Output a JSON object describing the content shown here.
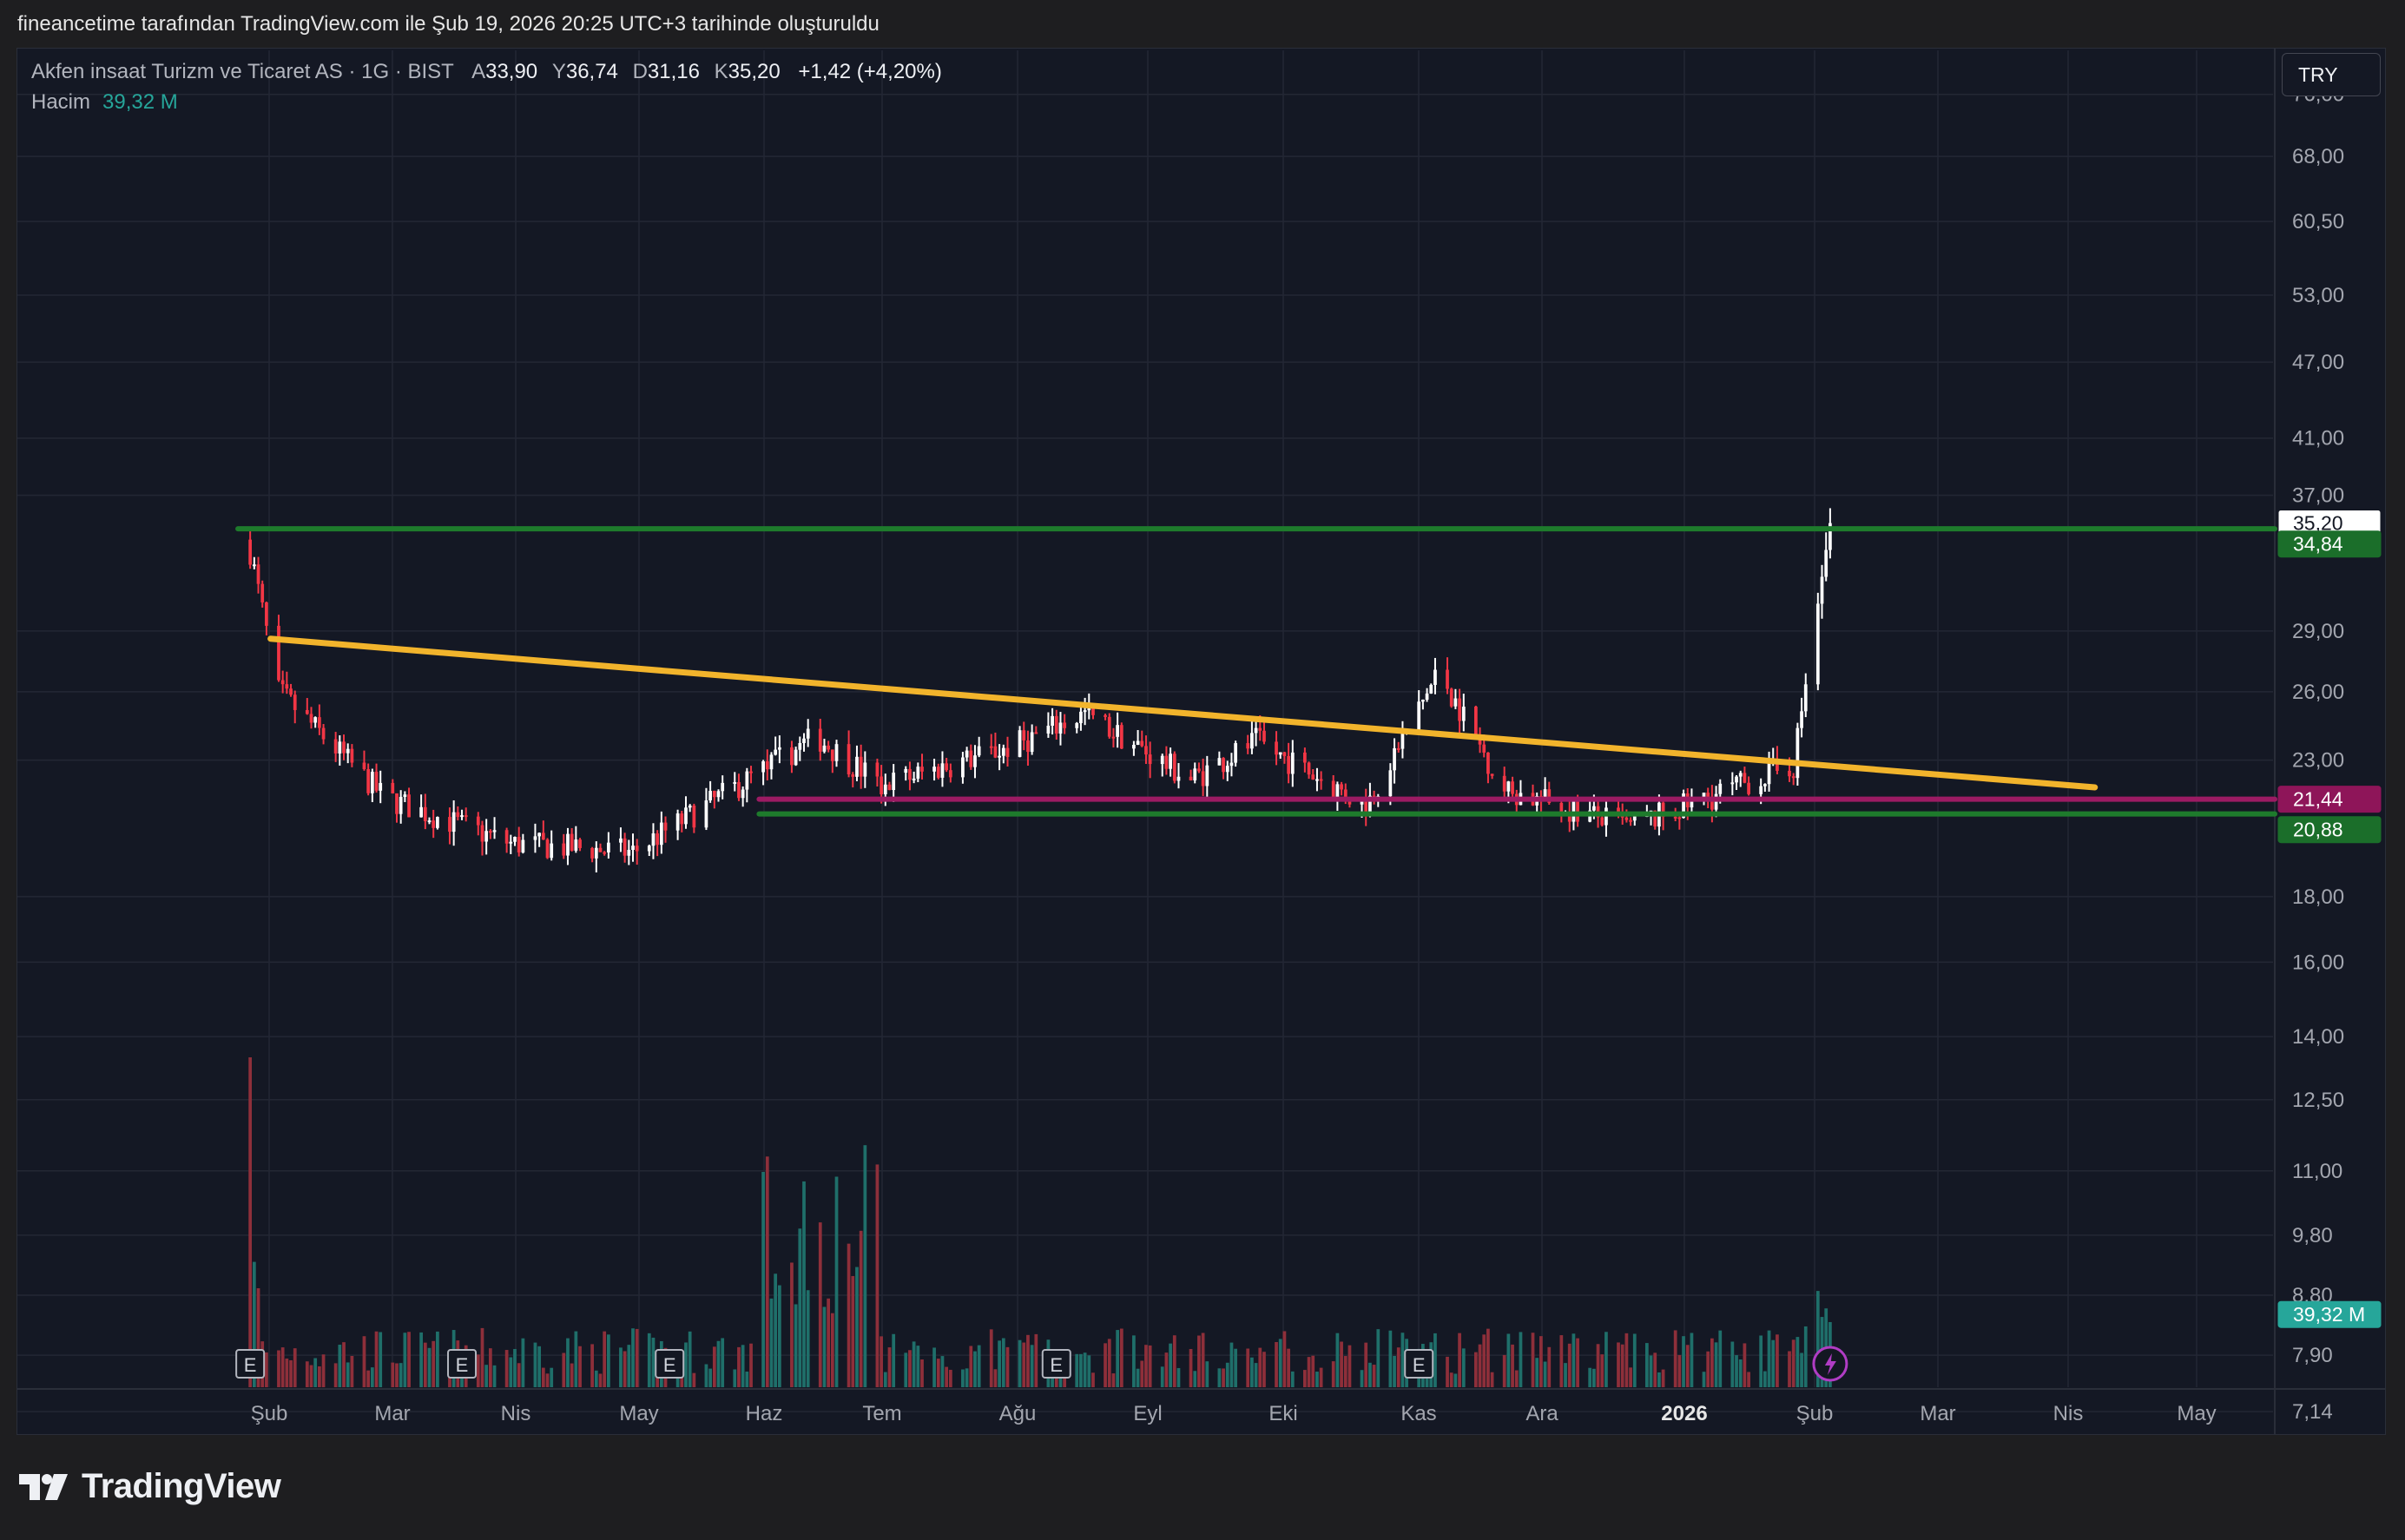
{
  "caption": "fineancetime tarafından TradingView.com ile Şub 19, 2026 20:25 UTC+3 tarihinde oluşturuldu",
  "legend": {
    "symbol": "Akfen insaat Turizm ve Ticaret AS · 1G · BIST",
    "open_label": "A",
    "open": "33,90",
    "high_label": "Y",
    "high": "36,74",
    "low_label": "D",
    "low": "31,16",
    "close_label": "K",
    "close": "35,20",
    "change": "+1,42 (+4,20%)",
    "volume_label": "Hacim",
    "volume": "39,32 M"
  },
  "currency_button": "TRY",
  "brand": "TradingView",
  "chart_data": {
    "type": "candlestick",
    "scale": "log",
    "ylim": [
      6.9,
      82
    ],
    "y_ticks": [
      "76,00",
      "68,00",
      "60,50",
      "53,00",
      "47,00",
      "41,00",
      "37,00",
      "29,00",
      "26,00",
      "23,00",
      "18,00",
      "16,00",
      "14,00",
      "12,50",
      "11,00",
      "9,80",
      "8,80",
      "7,90",
      "7,14"
    ],
    "x_ticks": [
      {
        "label": "Şub",
        "bold": false
      },
      {
        "label": "Mar",
        "bold": false
      },
      {
        "label": "Nis",
        "bold": false
      },
      {
        "label": "May",
        "bold": false
      },
      {
        "label": "Haz",
        "bold": false
      },
      {
        "label": "Tem",
        "bold": false
      },
      {
        "label": "Ağu",
        "bold": false
      },
      {
        "label": "Eyl",
        "bold": false
      },
      {
        "label": "Eki",
        "bold": false
      },
      {
        "label": "Kas",
        "bold": false
      },
      {
        "label": "Ara",
        "bold": false
      },
      {
        "label": "2026",
        "bold": true
      },
      {
        "label": "Şub",
        "bold": false
      },
      {
        "label": "Mar",
        "bold": false
      },
      {
        "label": "Nis",
        "bold": false
      },
      {
        "label": "May",
        "bold": false
      }
    ],
    "price_tags": [
      {
        "label": "35,20",
        "value": 35.2,
        "bg": "#ffffff",
        "fg": "#131722",
        "border": "#131722"
      },
      {
        "label": "34,84",
        "value": 33.9,
        "bg": "#1b6e2a",
        "fg": "#ffffff"
      },
      {
        "label": "21,44",
        "value": 21.44,
        "bg": "#8e1559",
        "fg": "#ffffff"
      },
      {
        "label": "20,88",
        "value": 20.3,
        "bg": "#1b6e2a",
        "fg": "#ffffff"
      },
      {
        "label": "39,32 M",
        "value": 8.5,
        "bg": "#26a69a",
        "fg": "#ffffff"
      }
    ],
    "lines": [
      {
        "name": "resistance",
        "color": "#1e7b2c",
        "from": [
          "2025-01-24",
          34.84
        ],
        "to": [
          "2026-05-31",
          34.84
        ]
      },
      {
        "name": "trendline",
        "color": "#f2b42c",
        "from": [
          "2025-02-01",
          28.6
        ],
        "to": [
          "2026-04-25",
          21.9
        ]
      },
      {
        "name": "support-upper",
        "color": "#9c1b63",
        "from": [
          "2025-06-01",
          21.44
        ],
        "to": [
          "2026-05-31",
          21.44
        ]
      },
      {
        "name": "support-lower",
        "color": "#1e7b2c",
        "from": [
          "2025-06-01",
          20.88
        ],
        "to": [
          "2026-05-31",
          20.88
        ]
      }
    ],
    "ohlc_monthly_anchors": [
      {
        "date": "2025-01-27",
        "close": 33.5
      },
      {
        "date": "2025-02-03",
        "close": 26.0
      },
      {
        "date": "2025-03-01",
        "close": 21.5
      },
      {
        "date": "2025-04-01",
        "close": 19.8
      },
      {
        "date": "2025-05-01",
        "close": 19.5
      },
      {
        "date": "2025-06-01",
        "close": 22.5
      },
      {
        "date": "2025-06-15",
        "close": 24.0
      },
      {
        "date": "2025-07-01",
        "close": 22.0
      },
      {
        "date": "2025-08-01",
        "close": 23.5
      },
      {
        "date": "2025-08-20",
        "close": 25.0
      },
      {
        "date": "2025-09-15",
        "close": 22.2
      },
      {
        "date": "2025-10-01",
        "close": 23.8
      },
      {
        "date": "2025-10-28",
        "close": 21.2
      },
      {
        "date": "2025-11-15",
        "close": 27.0
      },
      {
        "date": "2025-12-01",
        "close": 21.8
      },
      {
        "date": "2026-01-01",
        "close": 20.4
      },
      {
        "date": "2026-02-10",
        "close": 22.8
      },
      {
        "date": "2026-02-19",
        "close": 35.2
      }
    ],
    "volume_scale_max": 100,
    "earnings_markers": [
      "2025-01-27",
      "2025-03-20",
      "2025-05-10",
      "2025-08-13",
      "2025-11-10"
    ],
    "event_marker": {
      "date": "2026-02-19",
      "type": "lightning"
    }
  },
  "colors": {
    "up": "#ffffff",
    "down": "#f23645",
    "vol_up": "#1f6f6a",
    "vol_down": "#8e2f3a",
    "grid": "#232734",
    "axis_text": "#a3a6af"
  }
}
